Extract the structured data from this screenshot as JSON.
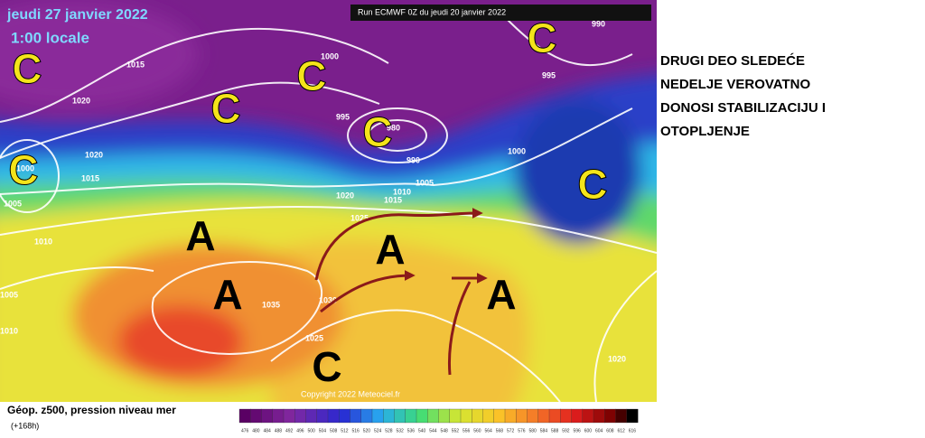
{
  "header": {
    "date": "jeudi 27 janvier 2022",
    "time": "1:00 locale"
  },
  "run_label": "Run ECMWF 0Z du jeudi 20 janvier 2022",
  "annotation": [
    "DRUGI DEO SLEDEĆE",
    "NEDELJE VEROVATNO",
    "DONOSI STABILIZACIJU I",
    "OTOPLJENJE"
  ],
  "footer": {
    "title": "Géop. z500, pression niveau mer",
    "subtitle": "(+168h)"
  },
  "copyright": "Copyright 2022 Meteociel.fr",
  "pressure_centers": [
    "C",
    "C",
    "C",
    "C",
    "C",
    "C",
    "C",
    "C",
    "A",
    "A",
    "A",
    "A"
  ],
  "isobar_labels": [
    "1015",
    "1020",
    "1000",
    "995",
    "980",
    "990",
    "995",
    "990",
    "1000",
    "1005",
    "1010",
    "1015",
    "1020",
    "1025",
    "1020",
    "1015",
    "1005",
    "1010",
    "1005",
    "1010",
    "1035",
    "1030",
    "1025",
    "1020",
    "1000"
  ],
  "colorbar_labels": [
    "476",
    "480",
    "484",
    "488",
    "492",
    "496",
    "500",
    "504",
    "508",
    "512",
    "516",
    "520",
    "524",
    "528",
    "532",
    "536",
    "540",
    "544",
    "548",
    "552",
    "556",
    "560",
    "564",
    "568",
    "572",
    "576",
    "580",
    "584",
    "588",
    "592",
    "596",
    "600",
    "604",
    "608",
    "612",
    "616"
  ]
}
